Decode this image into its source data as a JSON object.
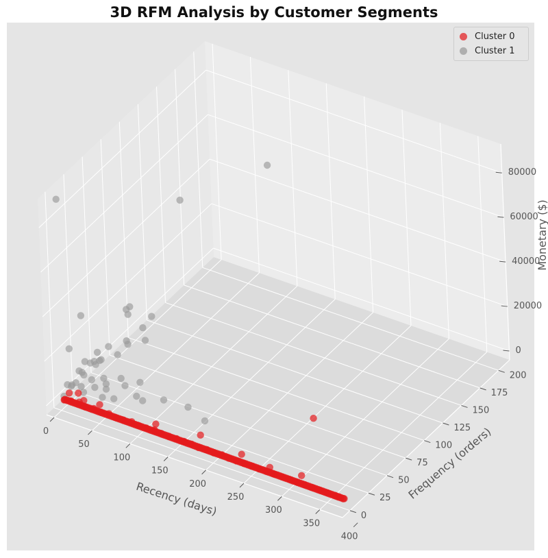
{
  "chart_data": {
    "type": "scatter3d",
    "title": "3D RFM Analysis by Customer Segments",
    "xlabel": "Recency (days)",
    "ylabel": "Frequency (orders)",
    "zlabel": "Monetary ($)",
    "xticks": [
      0,
      50,
      100,
      150,
      200,
      250,
      300,
      350,
      400
    ],
    "yticks": [
      0,
      25,
      50,
      75,
      100,
      125,
      150,
      175,
      200
    ],
    "zticks": [
      0,
      20000,
      40000,
      60000,
      80000
    ],
    "xlim": [
      -10,
      380
    ],
    "ylim": [
      -10,
      215
    ],
    "zlim": [
      -4000,
      93000
    ],
    "grid": true,
    "legend_position": "top-right",
    "series": [
      {
        "name": "Cluster 0",
        "color": "#e41a1c",
        "points": [
          [
            2,
            2,
            300
          ],
          [
            10,
            3,
            500
          ],
          [
            20,
            4,
            800
          ],
          [
            30,
            2,
            400
          ],
          [
            40,
            3,
            600
          ],
          [
            50,
            2,
            500
          ],
          [
            60,
            3,
            700
          ],
          [
            70,
            2,
            400
          ],
          [
            80,
            2,
            500
          ],
          [
            90,
            3,
            600
          ],
          [
            100,
            2,
            400
          ],
          [
            110,
            2,
            500
          ],
          [
            120,
            3,
            500
          ],
          [
            130,
            2,
            400
          ],
          [
            140,
            2,
            300
          ],
          [
            150,
            2,
            400
          ],
          [
            160,
            2,
            350
          ],
          [
            170,
            2,
            300
          ],
          [
            180,
            1,
            300
          ],
          [
            190,
            2,
            250
          ],
          [
            200,
            1,
            300
          ],
          [
            210,
            2,
            250
          ],
          [
            220,
            1,
            250
          ],
          [
            230,
            1,
            200
          ],
          [
            240,
            1,
            200
          ],
          [
            250,
            1,
            200
          ],
          [
            260,
            1,
            150
          ],
          [
            270,
            1,
            200
          ],
          [
            280,
            1,
            150
          ],
          [
            290,
            1,
            150
          ],
          [
            300,
            1,
            150
          ],
          [
            310,
            1,
            150
          ],
          [
            320,
            1,
            120
          ],
          [
            330,
            1,
            100
          ],
          [
            340,
            1,
            100
          ],
          [
            350,
            1,
            100
          ],
          [
            360,
            1,
            100
          ],
          [
            365,
            1,
            100
          ],
          [
            372,
            1,
            80
          ],
          [
            5,
            6,
            2500
          ],
          [
            15,
            8,
            3000
          ],
          [
            25,
            5,
            1800
          ],
          [
            45,
            6,
            2000
          ],
          [
            120,
            5,
            2500
          ],
          [
            172,
            12,
            1500
          ],
          [
            230,
            8,
            1000
          ],
          [
            270,
            5,
            800
          ],
          [
            310,
            7,
            1200
          ],
          [
            262,
            72,
            800
          ]
        ]
      },
      {
        "name": "Cluster 1",
        "color": "#999999",
        "points": [
          [
            1,
            3,
            90000
          ],
          [
            80,
            202,
            52000
          ],
          [
            15,
            150,
            45000
          ],
          [
            2,
            28,
            30000
          ],
          [
            40,
            55,
            30000
          ],
          [
            1,
            12,
            20000
          ],
          [
            30,
            60,
            26000
          ],
          [
            32,
            60,
            24000
          ],
          [
            20,
            30,
            15000
          ],
          [
            25,
            40,
            15000
          ],
          [
            5,
            20,
            8000
          ],
          [
            8,
            25,
            11000
          ],
          [
            10,
            30,
            9000
          ],
          [
            12,
            35,
            7000
          ],
          [
            14,
            15,
            10000
          ],
          [
            5,
            40,
            6000
          ],
          [
            3,
            12,
            4000
          ],
          [
            6,
            8,
            5000
          ],
          [
            2,
            18,
            3000
          ],
          [
            9,
            22,
            6000
          ],
          [
            11,
            16,
            3000
          ],
          [
            4,
            50,
            3500
          ],
          [
            7,
            45,
            5000
          ],
          [
            13,
            28,
            2500
          ],
          [
            16,
            60,
            4000
          ],
          [
            20,
            70,
            6000
          ],
          [
            22,
            35,
            2000
          ],
          [
            3,
            6,
            6000
          ],
          [
            18,
            12,
            2500
          ],
          [
            25,
            20,
            3000
          ],
          [
            30,
            30,
            2000
          ],
          [
            35,
            25,
            1800
          ],
          [
            40,
            40,
            2500
          ],
          [
            50,
            35,
            2000
          ],
          [
            60,
            45,
            1500
          ],
          [
            70,
            30,
            1200
          ],
          [
            80,
            28,
            1000
          ],
          [
            100,
            36,
            1200
          ],
          [
            130,
            38,
            900
          ],
          [
            160,
            30,
            800
          ],
          [
            45,
            10,
            4000
          ],
          [
            55,
            15,
            3000
          ],
          [
            8,
            80,
            3000
          ],
          [
            15,
            95,
            5000
          ],
          [
            28,
            85,
            4000
          ],
          [
            12,
            110,
            5000
          ],
          [
            2,
            2,
            2000
          ]
        ]
      }
    ]
  }
}
